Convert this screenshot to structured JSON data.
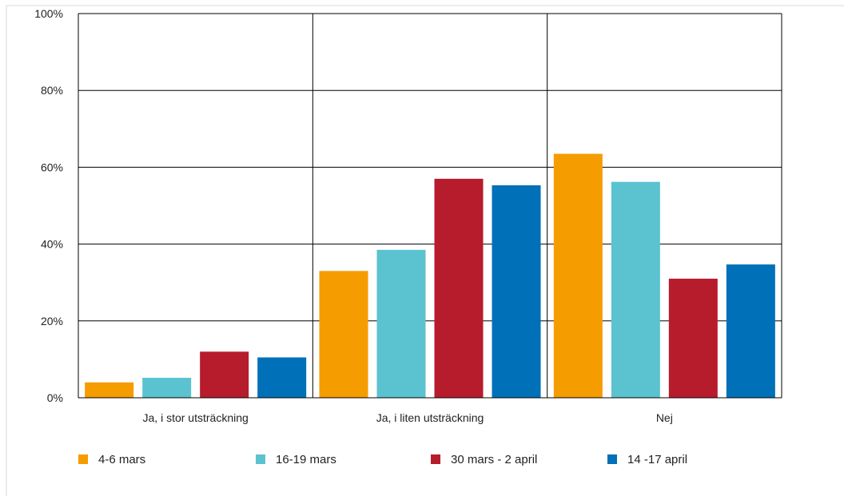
{
  "chart_data": {
    "type": "bar",
    "categories": [
      "Ja, i stor utsträckning",
      "Ja, i liten utsträckning",
      "Nej"
    ],
    "series": [
      {
        "name": "4-6 mars",
        "color": "#f59c00",
        "values": [
          4,
          33,
          63.5
        ]
      },
      {
        "name": "16-19 mars",
        "color": "#5bc2d0",
        "values": [
          5.2,
          38.5,
          56.2
        ]
      },
      {
        "name": "30 mars - 2 april",
        "color": "#b71c2c",
        "values": [
          12,
          57,
          31
        ]
      },
      {
        "name": "14 -17 april",
        "color": "#0070b8",
        "values": [
          10.5,
          55.3,
          34.7
        ]
      }
    ],
    "ylim": [
      0,
      100
    ],
    "yticks": [
      0,
      20,
      40,
      60,
      80,
      100
    ],
    "ytick_labels": [
      "0%",
      "20%",
      "40%",
      "60%",
      "80%",
      "100%"
    ],
    "grid": true,
    "legend_position": "bottom"
  }
}
